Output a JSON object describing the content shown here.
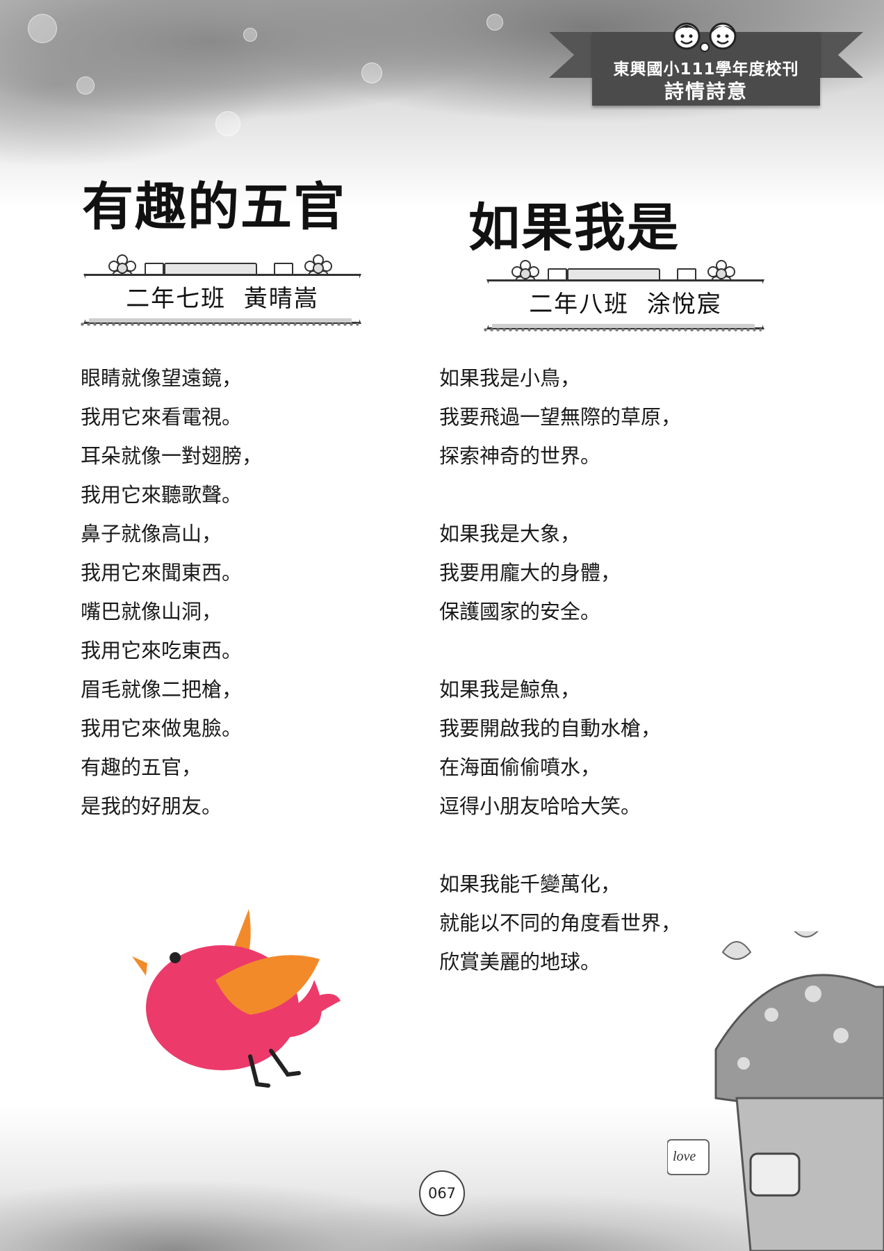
{
  "header": {
    "school_line": "東興國小111學年度校刊",
    "section": "詩情詩意"
  },
  "poem1": {
    "title": "有趣的五官",
    "author": "二年七班  黃晴嵩",
    "lines": [
      "眼睛就像望遠鏡，",
      "我用它來看電視。",
      "耳朵就像一對翅膀，",
      "我用它來聽歌聲。",
      "鼻子就像高山，",
      "我用它來聞東西。",
      "嘴巴就像山洞，",
      "我用它來吃東西。",
      "眉毛就像二把槍，",
      "我用它來做鬼臉。",
      "有趣的五官，",
      "是我的好朋友。"
    ]
  },
  "poem2": {
    "title": "如果我是",
    "author": "二年八班  涂悅宸",
    "stanzas": [
      [
        "如果我是小鳥，",
        "我要飛過一望無際的草原，",
        "探索神奇的世界。"
      ],
      [
        "如果我是大象，",
        "我要用龐大的身體，",
        "保護國家的安全。"
      ],
      [
        "如果我是鯨魚，",
        "我要開啟我的自動水槍，",
        "在海面偷偷噴水，",
        "逗得小朋友哈哈大笑。"
      ],
      [
        "如果我能千變萬化，",
        "就能以不同的角度看世界，",
        "欣賞美麗的地球。"
      ]
    ]
  },
  "decor": {
    "love_sign": "love"
  },
  "footer": {
    "page_number": "067"
  }
}
